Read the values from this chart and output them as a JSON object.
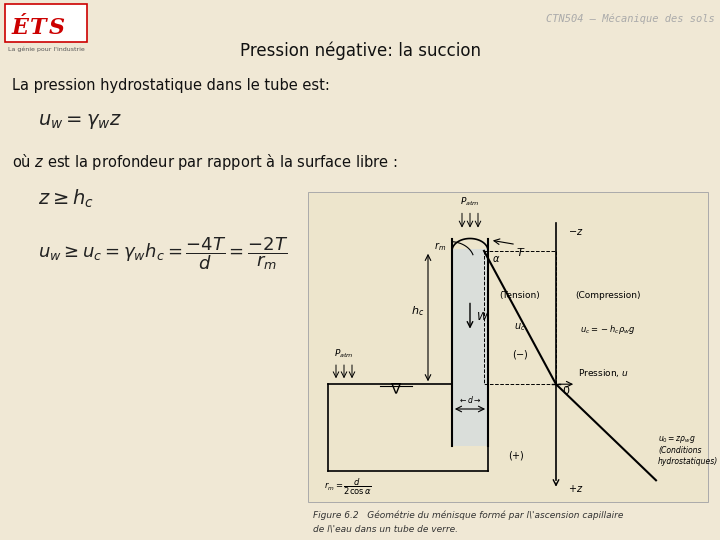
{
  "bg_color": "#f0e8d5",
  "title": "Pression négative: la succion",
  "header_right": "CTN504 – Mécanique des sols",
  "line1": "La pression hydrostatique dans le tube est:",
  "line2": "où $z$ est la profondeur par rapport à la surface libre :",
  "title_fontsize": 12,
  "text_fontsize": 10.5,
  "eq_fontsize": 12,
  "small_fontsize": 6.5
}
